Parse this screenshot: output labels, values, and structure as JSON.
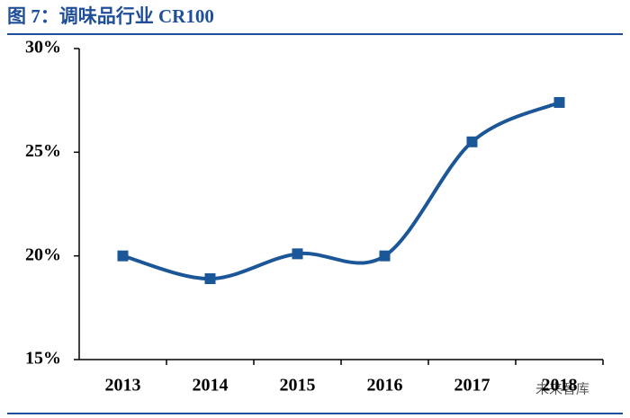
{
  "chart_data": {
    "type": "line",
    "title": "图 7：调味品行业 CR100",
    "categories": [
      "2013",
      "2014",
      "2015",
      "2016",
      "2017",
      "2018"
    ],
    "series": [
      {
        "color": "#1b5798",
        "values": [
          20.0,
          18.9,
          20.1,
          20.0,
          25.5,
          27.4
        ]
      }
    ],
    "ylim": [
      15,
      30
    ],
    "yticks": [
      {
        "value": 15,
        "label": "15%"
      },
      {
        "value": 20,
        "label": "20%"
      },
      {
        "value": 25,
        "label": "25%"
      },
      {
        "value": 30,
        "label": "30%"
      }
    ],
    "smooth": true,
    "annotation": "未来智库"
  }
}
